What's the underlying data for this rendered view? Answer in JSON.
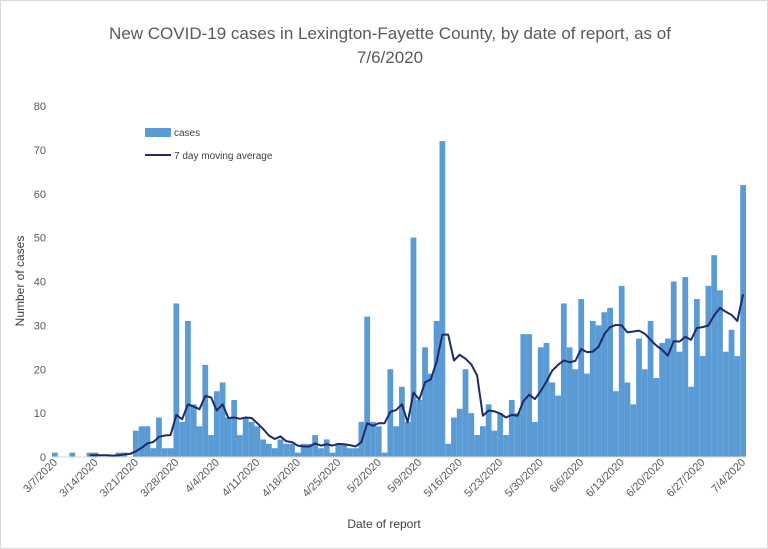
{
  "chart_data": {
    "type": "bar",
    "title_line1": "New COVID-19 cases in Lexington-Fayette County, by date of report, as of",
    "title_line2": "7/6/2020",
    "xlabel": "Date of report",
    "ylabel": "Number of cases",
    "ylim": [
      0,
      80
    ],
    "yticks": [
      0,
      10,
      20,
      30,
      40,
      50,
      60,
      70,
      80
    ],
    "start_date": "3/7/2020",
    "xtick_labels": [
      "3/7/2020",
      "3/14/2020",
      "3/21/2020",
      "3/28/2020",
      "4/4/2020",
      "4/11/2020",
      "4/18/2020",
      "4/25/2020",
      "5/2/2020",
      "5/9/2020",
      "5/16/2020",
      "5/23/2020",
      "5/30/2020",
      "6/6/2020",
      "6/13/2020",
      "6/20/2020",
      "6/27/2020",
      "7/4/2020"
    ],
    "series": [
      {
        "name": "cases",
        "color": "#5b9bd5",
        "type": "bar",
        "values": [
          1,
          0,
          0,
          1,
          0,
          0,
          1,
          1,
          0,
          0,
          0,
          1,
          1,
          0,
          6,
          7,
          7,
          2,
          9,
          2,
          2,
          35,
          8,
          31,
          12,
          7,
          21,
          5,
          15,
          17,
          9,
          13,
          5,
          9,
          8,
          7,
          4,
          3,
          2,
          4,
          3,
          3,
          1,
          3,
          3,
          5,
          2,
          4,
          1,
          3,
          3,
          2,
          2,
          8,
          32,
          8,
          7,
          1,
          20,
          7,
          16,
          8,
          50,
          13,
          25,
          19,
          31,
          72,
          3,
          9,
          11,
          20,
          10,
          5,
          7,
          12,
          6,
          10,
          5,
          13,
          10,
          28,
          28,
          8,
          25,
          26,
          17,
          14,
          35,
          25,
          20,
          36,
          19,
          31,
          30,
          33,
          34,
          15,
          39,
          17,
          12,
          27,
          20,
          31,
          18,
          26,
          27,
          40,
          24,
          41,
          16,
          36,
          23,
          39,
          46,
          38,
          24,
          29,
          23,
          62
        ]
      },
      {
        "name": "7 day moving average",
        "color": "#1f2a66",
        "type": "line",
        "values": [
          null,
          null,
          null,
          null,
          null,
          null,
          0.4,
          0.4,
          0.4,
          0.4,
          0.3,
          0.4,
          0.6,
          0.7,
          1.3,
          2.1,
          3.1,
          3.4,
          4.6,
          4.9,
          5.0,
          9.6,
          8.6,
          12.0,
          11.5,
          10.9,
          13.9,
          13.6,
          10.6,
          12.0,
          8.9,
          9.0,
          8.7,
          9.0,
          8.9,
          7.7,
          6.4,
          4.9,
          4.1,
          4.7,
          3.6,
          3.4,
          2.6,
          2.4,
          2.4,
          3.1,
          2.6,
          2.9,
          2.6,
          3.0,
          2.9,
          2.7,
          2.4,
          3.4,
          7.7,
          7.1,
          7.7,
          7.7,
          10.3,
          10.7,
          12.0,
          7.9,
          14.7,
          13.1,
          17.0,
          17.7,
          21.7,
          27.9,
          27.9,
          22.0,
          23.3,
          22.4,
          21.1,
          18.6,
          9.4,
          10.6,
          10.4,
          9.9,
          9.0,
          9.6,
          9.4,
          12.7,
          14.2,
          13.2,
          15.0,
          17.2,
          19.7,
          21.0,
          22.0,
          21.6,
          21.9,
          24.6,
          23.9,
          24.0,
          25.1,
          28.0,
          29.6,
          30.1,
          30.0,
          28.4,
          28.6,
          28.8,
          28.1,
          26.7,
          25.4,
          24.4,
          23.1,
          26.4,
          26.3,
          27.4,
          26.7,
          29.4,
          29.6,
          30.0,
          32.3,
          34.0,
          33.1,
          32.4,
          31.0,
          37.1
        ]
      }
    ]
  }
}
